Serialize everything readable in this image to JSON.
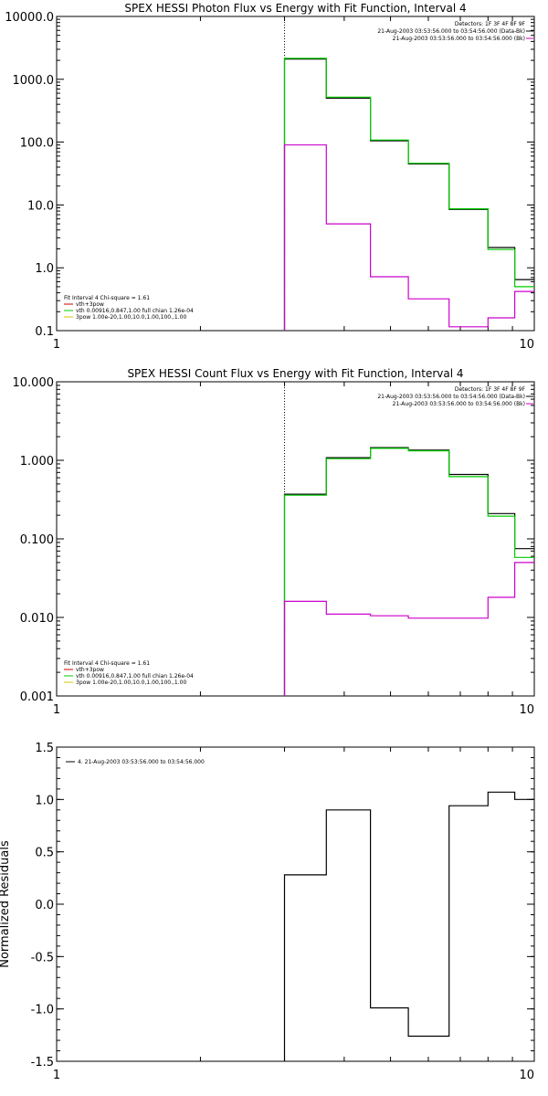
{
  "chart_data": [
    {
      "type": "line",
      "title": "SPEX HESSI Photon Flux vs Energy with Fit Function, Interval 4",
      "xscale": "log",
      "yscale": "log",
      "xlim": [
        1,
        10
      ],
      "ylim": [
        0.1,
        10000
      ],
      "x_ticks": [
        "1",
        "10"
      ],
      "y_ticks": [
        "0.1",
        "1.0",
        "10.0",
        "100.0",
        "1000.0",
        "10000.0"
      ],
      "vline_x": 3,
      "header": {
        "detectors": "Detectors: 1F 3F 4F 8F 9F",
        "lines": [
          {
            "text": "21-Aug-2003 03:53:56.000 to 03:54:56.000 (Data-Bk)",
            "color": "#000000"
          },
          {
            "text": "21-Aug-2003 03:53:56.000 to 03:54:56.000 (Bk)",
            "color": "#cc00cc"
          }
        ]
      },
      "legend": {
        "title": "Fit Interval 4   Chi-square = 1.61",
        "items": [
          {
            "text": "vth+3pow",
            "color": "#cc0000"
          },
          {
            "text": "vth 0.00916,0.847,1.00  full chian 1.26e-04",
            "color": "#00cc00"
          },
          {
            "text": "3pow 1.00e-20,1.00,10.0,1.00,100.,1.00",
            "color": "#d4c800"
          }
        ]
      },
      "series": [
        {
          "color": "#000000",
          "edges": [
            3,
            3.67,
            4.54,
            5.45,
            6.63,
            8,
            9.1,
            10
          ],
          "values": [
            2100,
            500,
            105,
            45,
            8.5,
            2.1,
            0.65
          ]
        },
        {
          "color": "#00cc00",
          "edges": [
            3,
            3.67,
            4.54,
            5.45,
            6.63,
            8,
            9.1,
            10
          ],
          "values": [
            2150,
            520,
            108,
            46,
            8.7,
            1.95,
            0.5
          ]
        },
        {
          "color": "#cc00cc",
          "edges": [
            3,
            3.67,
            4.54,
            5.45,
            6.63,
            8,
            9.1,
            10
          ],
          "values": [
            90,
            5,
            0.72,
            0.32,
            0.115,
            0.16,
            0.42
          ]
        }
      ]
    },
    {
      "type": "line",
      "title": "SPEX HESSI Count Flux vs Energy with Fit Function, Interval 4",
      "xscale": "log",
      "yscale": "log",
      "xlim": [
        1,
        10
      ],
      "ylim": [
        0.001,
        10
      ],
      "x_ticks": [
        "1",
        "10"
      ],
      "y_ticks": [
        "0.001",
        "0.010",
        "0.100",
        "1.000",
        "10.000"
      ],
      "vline_x": 3,
      "header": {
        "detectors": "Detectors: 1F 3F 4F 8F 9F",
        "lines": [
          {
            "text": "21-Aug-2003 03:53:56.000 to 03:54:56.000 (Data-Bk)",
            "color": "#000000"
          },
          {
            "text": "21-Aug-2003 03:53:56.000 to 03:54:56.000 (Bk)",
            "color": "#cc00cc"
          }
        ]
      },
      "legend": {
        "title": "Fit Interval 4   Chi-square = 1.61",
        "items": [
          {
            "text": "vth+3pow",
            "color": "#cc0000"
          },
          {
            "text": "vth 0.00916,0.847,1.00  full chian 1.26e-04",
            "color": "#00cc00"
          },
          {
            "text": "3pow 1.00e-20,1.00,10.0,1.00,100.,1.00",
            "color": "#d4c800"
          }
        ]
      },
      "series": [
        {
          "color": "#000000",
          "edges": [
            3,
            3.67,
            4.54,
            5.45,
            6.63,
            8,
            9.1,
            10
          ],
          "values": [
            0.37,
            1.08,
            1.45,
            1.35,
            0.66,
            0.21,
            0.075
          ]
        },
        {
          "color": "#00cc00",
          "edges": [
            3,
            3.67,
            4.54,
            5.45,
            6.63,
            8,
            9.1,
            10
          ],
          "values": [
            0.36,
            1.05,
            1.42,
            1.32,
            0.62,
            0.195,
            0.058
          ]
        },
        {
          "color": "#cc00cc",
          "edges": [
            3,
            3.67,
            4.54,
            5.45,
            6.63,
            8,
            9.1,
            10
          ],
          "values": [
            0.016,
            0.011,
            0.0105,
            0.0098,
            0.0098,
            0.018,
            0.05
          ]
        }
      ]
    },
    {
      "type": "line",
      "title": "",
      "ylabel": "Normalized Residuals",
      "xscale": "log",
      "yscale": "linear",
      "xlim": [
        1,
        10
      ],
      "ylim": [
        -1.5,
        1.5
      ],
      "x_ticks": [
        "1",
        "10"
      ],
      "y_ticks": [
        "-1.5",
        "-1.0",
        "-0.5",
        "0.0",
        "0.5",
        "1.0",
        "1.5"
      ],
      "legend": {
        "items": [
          {
            "text": "4. 21-Aug-2003 03:53:56.000 to 03:54:56.000",
            "color": "#000000"
          }
        ]
      },
      "series": [
        {
          "color": "#000000",
          "edges": [
            3,
            3.67,
            4.54,
            5.45,
            6.63,
            8,
            9.1,
            10
          ],
          "values": [
            0.28,
            0.9,
            -0.99,
            -1.26,
            0.94,
            1.07,
            1.0
          ]
        }
      ]
    }
  ]
}
